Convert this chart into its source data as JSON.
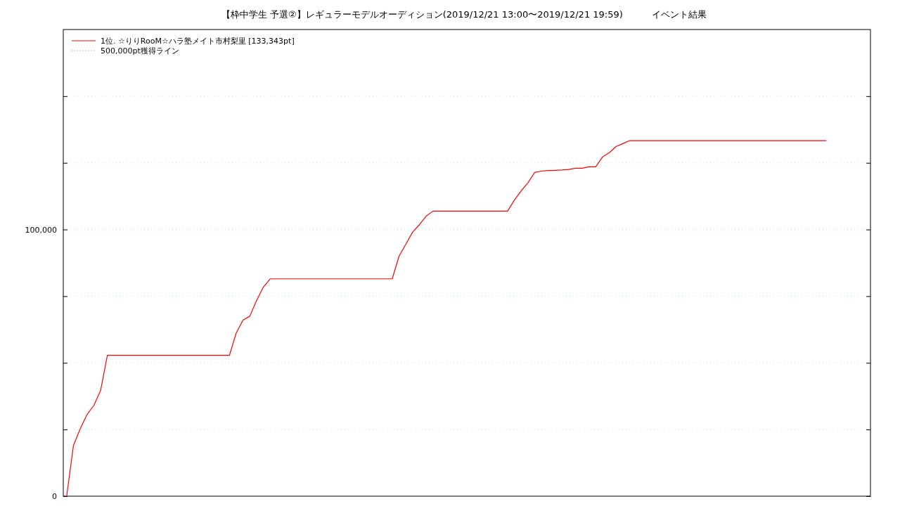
{
  "chart_data": {
    "type": "line",
    "title": "【枠中学生 予選②】レギュラーモデルオーディション(2019/12/21 13:00〜2019/12/21 19:59)          イベント結果",
    "categories": [
      null,
      null,
      null,
      null,
      null,
      null,
      null,
      null,
      null,
      null,
      null,
      null,
      null,
      null,
      null,
      null,
      null,
      null,
      null,
      null,
      null,
      null,
      null,
      null,
      null,
      null,
      null,
      null,
      null,
      null,
      null,
      null,
      null,
      null,
      null,
      null,
      null,
      null,
      null,
      null,
      null,
      null,
      null,
      null,
      null,
      null,
      null,
      null,
      null,
      null,
      null,
      null,
      null,
      null,
      null,
      null,
      null,
      null,
      null,
      null,
      null,
      null,
      null,
      null,
      null,
      null,
      null,
      null,
      null,
      null,
      null,
      null,
      null,
      null,
      null,
      null,
      null,
      null,
      null,
      null,
      null,
      null,
      null,
      null,
      null,
      null,
      null,
      null,
      null,
      null,
      null,
      null,
      null,
      null,
      null,
      null,
      null,
      null,
      null,
      null,
      null,
      null,
      null,
      null,
      null,
      null,
      null,
      null,
      null,
      null,
      null,
      null,
      null,
      null,
      null,
      null,
      null,
      null,
      null
    ],
    "series": [
      {
        "name": "1位. ☆りりRooM☆ハラ塾メイト市村梨里 [133,343pt]",
        "color": "#ff0000",
        "line_style": "solid",
        "values": [
          0,
          19000,
          25300,
          30600,
          34000,
          39600,
          52800,
          52800,
          52800,
          52800,
          52800,
          52800,
          52800,
          52800,
          52800,
          52800,
          52800,
          52800,
          52800,
          52800,
          52800,
          52800,
          52800,
          52800,
          52800,
          61200,
          66000,
          67500,
          73400,
          78400,
          81500,
          81500,
          81500,
          81500,
          81500,
          81500,
          81500,
          81500,
          81500,
          81500,
          81500,
          81500,
          81500,
          81500,
          81500,
          81500,
          81500,
          81500,
          81500,
          90000,
          94500,
          99000,
          101800,
          105000,
          106900,
          106900,
          106900,
          106900,
          106900,
          106900,
          106900,
          106900,
          106900,
          106900,
          106900,
          106900,
          111000,
          114500,
          117500,
          121400,
          121900,
          122100,
          122200,
          122300,
          122500,
          123000,
          123000,
          123500,
          123500,
          127200,
          128800,
          131100,
          132200,
          133343,
          133343,
          133343,
          133343,
          133343,
          133343,
          133343,
          133343,
          133343,
          133343,
          133343,
          133343,
          133343,
          133343,
          133343,
          133343,
          133343,
          133343,
          133343,
          133343,
          133343,
          133343,
          133343,
          133343,
          133343,
          133343,
          133343,
          133343,
          133343,
          133343,
          null,
          null,
          null,
          null,
          null,
          null
        ]
      },
      {
        "name": "500,000pt獲得ライン",
        "color": "#ff6666",
        "line_style": "dotted",
        "values": [
          null,
          null,
          null,
          null,
          null,
          null,
          null,
          null,
          null,
          null,
          null,
          null,
          null,
          null,
          null,
          null,
          null,
          null,
          null,
          null,
          null,
          null,
          null,
          null,
          null,
          null,
          null,
          null,
          null,
          null,
          null,
          null,
          null,
          null,
          null,
          null,
          null,
          null,
          null,
          null,
          null,
          null,
          null,
          null,
          null,
          null,
          null,
          null,
          null,
          null,
          null,
          null,
          null,
          null,
          null,
          null,
          null,
          null,
          null,
          null,
          null,
          null,
          null,
          null,
          null,
          null,
          null,
          null,
          null,
          null,
          null,
          null,
          null,
          null,
          null,
          null,
          null,
          null,
          null,
          null,
          null,
          null,
          null,
          null,
          null,
          null,
          null,
          null,
          null,
          null,
          null,
          null,
          null,
          null,
          null,
          null,
          null,
          null,
          null,
          null,
          null,
          null,
          null,
          null,
          null,
          null,
          null,
          null,
          null,
          null,
          null,
          null,
          null,
          null,
          null,
          null,
          null,
          null,
          null
        ]
      }
    ],
    "ylim": [
      0,
      175000
    ],
    "yticks": [
      0,
      {
        "value": 25000,
        "label": null
      },
      {
        "value": 50000,
        "label": null
      },
      {
        "value": 75000,
        "label": null
      },
      {
        "value": 100000,
        "label": "100,000"
      },
      {
        "value": 125000,
        "label": null
      },
      {
        "value": 150000,
        "label": null
      }
    ],
    "grid": "y",
    "legend": "top left",
    "marker": "none"
  }
}
